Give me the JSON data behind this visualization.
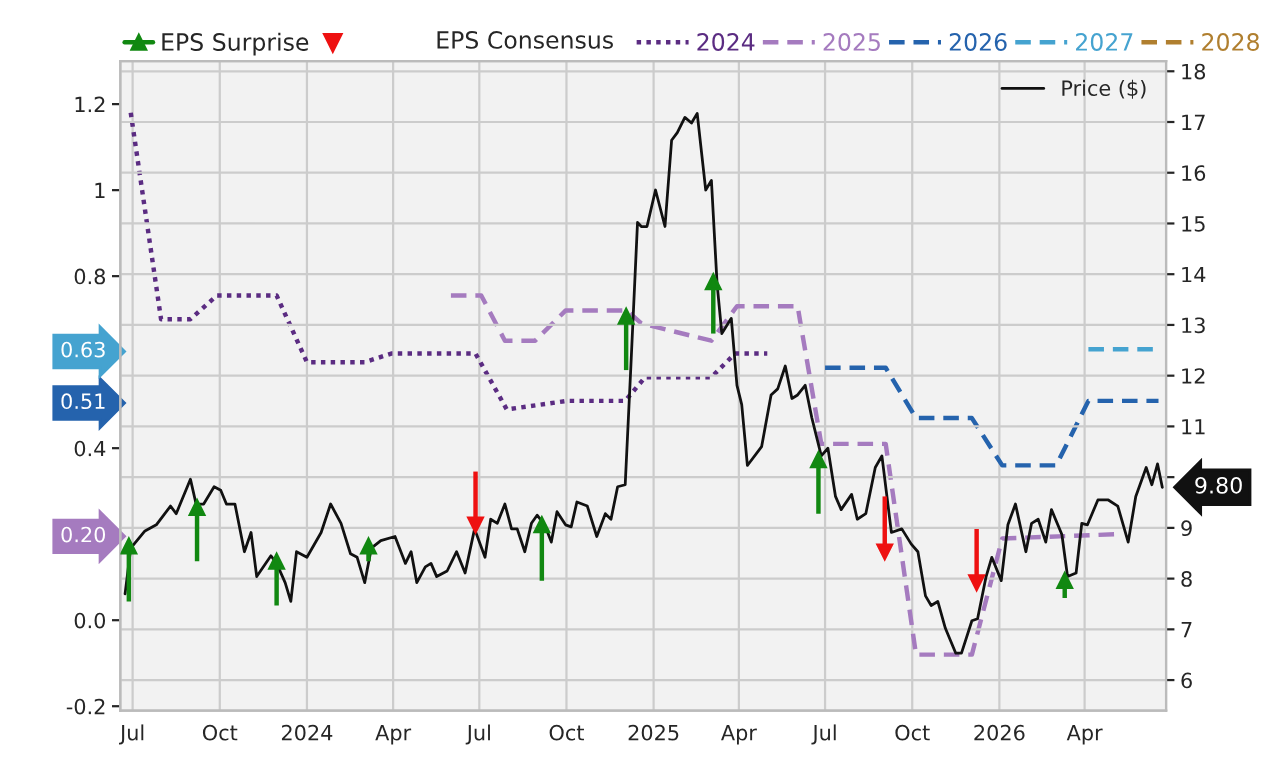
{
  "chart_data": {
    "type": "line",
    "legend_title": "EPS Consensus",
    "xlim": [
      "2023-06-18",
      "2026-06-26"
    ],
    "xticks": [
      {
        "value": "2023-07-01",
        "label": "Jul"
      },
      {
        "value": "2023-10-01",
        "label": "Oct"
      },
      {
        "value": "2024-01-01",
        "label": "2024"
      },
      {
        "value": "2024-04-01",
        "label": "Apr"
      },
      {
        "value": "2024-07-01",
        "label": "Jul"
      },
      {
        "value": "2024-10-01",
        "label": "Oct"
      },
      {
        "value": "2025-01-01",
        "label": "2025"
      },
      {
        "value": "2025-04-01",
        "label": "Apr"
      },
      {
        "value": "2025-07-01",
        "label": "Jul"
      },
      {
        "value": "2025-10-01",
        "label": "Oct"
      },
      {
        "value": "2026-01-01",
        "label": "2026"
      },
      {
        "value": "2026-04-01",
        "label": "Apr"
      }
    ],
    "ylim": [
      -0.21,
      1.3
    ],
    "yticks": [
      -0.2,
      {
        "value": 0,
        "label": "0.0"
      },
      {
        "value": 0.2,
        "label": "0.20"
      },
      0.4,
      {
        "value": 0.51,
        "label": "0.51"
      },
      {
        "value": 0.63,
        "label": "0.63"
      },
      0.8,
      1,
      1.2
    ],
    "y2lim": [
      5.4,
      18.2
    ],
    "y2ticks": [
      6,
      7,
      8,
      9,
      {
        "value": 10,
        "label": null
      },
      11,
      12,
      13,
      14,
      15,
      16,
      17,
      18
    ],
    "grid": true,
    "legend": "top",
    "series": [
      {
        "name": "2024",
        "color": "#5b2c82",
        "line_style": "dotted",
        "x": [
          "2023-06-29",
          "2023-07-31",
          "2023-08-31",
          "2023-09-28",
          "2023-11-30",
          "2024-01-01",
          "2024-03-02",
          "2024-03-30",
          "2024-06-27",
          "2024-07-30",
          "2024-10-02",
          "2024-12-02",
          "2024-12-23",
          "2025-03-03",
          "2025-03-28",
          "2025-05-01"
        ],
        "values": [
          1.18,
          0.7,
          0.7,
          0.755,
          0.755,
          0.6,
          0.6,
          0.62,
          0.62,
          0.49,
          0.51,
          0.51,
          0.565,
          0.565,
          0.62,
          0.62
        ]
      },
      {
        "name": "2025",
        "color": "#a57bbf",
        "line_style": "dashed",
        "x": [
          "2024-06-01",
          "2024-07-03",
          "2024-07-28",
          "2024-08-29",
          "2024-09-30",
          "2024-12-04",
          "2024-12-19",
          "2025-03-03",
          "2025-03-30",
          "2025-06-02",
          "2025-06-27",
          "2025-09-03",
          "2025-10-05",
          "2025-12-03",
          "2026-01-04",
          "2026-05-04"
        ],
        "values": [
          0.755,
          0.755,
          0.65,
          0.65,
          0.72,
          0.72,
          0.69,
          0.65,
          0.73,
          0.73,
          0.41,
          0.41,
          -0.08,
          -0.08,
          0.19,
          0.2
        ]
      },
      {
        "name": "2026",
        "color": "#2563ad",
        "line_style": "dashed",
        "x": [
          "2025-07-01",
          "2025-09-03",
          "2025-10-05",
          "2025-12-03",
          "2026-01-04",
          "2026-03-02",
          "2026-04-05",
          "2026-06-18"
        ],
        "values": [
          0.587,
          0.587,
          0.47,
          0.47,
          0.36,
          0.36,
          0.51,
          0.51
        ]
      },
      {
        "name": "2027",
        "color": "#45a3d0",
        "line_style": "dashed",
        "x": [
          "2026-04-05",
          "2026-06-18"
        ],
        "values": [
          0.63,
          0.63
        ]
      },
      {
        "name": "2028",
        "color": "#b07f2f",
        "line_style": "dashed"
      },
      {
        "name": "Price ($)",
        "color": "#111111",
        "line_style": "solid",
        "axis": "y2",
        "x": [
          "2023-06-23",
          "2023-06-29",
          "2023-07-14",
          "2023-07-26",
          "2023-08-10",
          "2023-08-16",
          "2023-08-31",
          "2023-09-06",
          "2023-09-14",
          "2023-09-25",
          "2023-10-02",
          "2023-10-08",
          "2023-10-17",
          "2023-10-27",
          "2023-11-03",
          "2023-11-09",
          "2023-11-24",
          "2023-11-30",
          "2023-12-09",
          "2023-12-15",
          "2023-12-21",
          "2024-01-01",
          "2024-01-16",
          "2024-01-26",
          "2024-02-06",
          "2024-02-16",
          "2024-02-23",
          "2024-03-02",
          "2024-03-09",
          "2024-03-19",
          "2024-04-03",
          "2024-04-14",
          "2024-04-20",
          "2024-04-26",
          "2024-05-05",
          "2024-05-11",
          "2024-05-17",
          "2024-05-28",
          "2024-06-07",
          "2024-06-16",
          "2024-06-26",
          "2024-07-07",
          "2024-07-13",
          "2024-07-20",
          "2024-07-28",
          "2024-08-04",
          "2024-08-10",
          "2024-08-18",
          "2024-08-25",
          "2024-08-31",
          "2024-09-08",
          "2024-09-15",
          "2024-09-21",
          "2024-09-30",
          "2024-10-06",
          "2024-10-12",
          "2024-10-23",
          "2024-11-02",
          "2024-11-11",
          "2024-11-17",
          "2024-11-24",
          "2024-12-02",
          "2024-12-08",
          "2024-12-15",
          "2024-12-19",
          "2024-12-25",
          "2025-01-03",
          "2025-01-13",
          "2025-01-20",
          "2025-01-26",
          "2025-02-03",
          "2025-02-10",
          "2025-02-16",
          "2025-02-25",
          "2025-03-03",
          "2025-03-09",
          "2025-03-14",
          "2025-03-24",
          "2025-03-30",
          "2025-04-04",
          "2025-04-10",
          "2025-04-25",
          "2025-05-05",
          "2025-05-12",
          "2025-05-20",
          "2025-05-27",
          "2025-06-02",
          "2025-06-10",
          "2025-06-17",
          "2025-06-27",
          "2025-07-04",
          "2025-07-12",
          "2025-07-18",
          "2025-07-29",
          "2025-08-04",
          "2025-08-13",
          "2025-08-23",
          "2025-08-30",
          "2025-09-09",
          "2025-09-20",
          "2025-09-30",
          "2025-10-07",
          "2025-10-15",
          "2025-10-21",
          "2025-10-28",
          "2025-11-05",
          "2025-11-16",
          "2025-11-22",
          "2025-12-03",
          "2025-12-09",
          "2025-12-18",
          "2025-12-24",
          "2026-01-03",
          "2026-01-10",
          "2026-01-18",
          "2026-01-29",
          "2026-02-04",
          "2026-02-11",
          "2026-02-19",
          "2026-02-25",
          "2026-03-08",
          "2026-03-14",
          "2026-03-23",
          "2026-03-29",
          "2026-04-04",
          "2026-04-15",
          "2026-04-26",
          "2026-05-06",
          "2026-05-17",
          "2026-05-25",
          "2026-06-05",
          "2026-06-11",
          "2026-06-17",
          "2026-06-22"
        ],
        "values": [
          7.7,
          8.6,
          8.94,
          9.06,
          9.43,
          9.28,
          9.96,
          9.47,
          9.47,
          9.81,
          9.74,
          9.47,
          9.47,
          8.53,
          8.91,
          8.04,
          8.45,
          8.3,
          7.92,
          7.55,
          8.53,
          8.42,
          8.91,
          9.47,
          9.09,
          8.49,
          8.42,
          7.92,
          8.6,
          8.75,
          8.83,
          8.3,
          8.53,
          7.92,
          8.23,
          8.3,
          8.04,
          8.15,
          8.53,
          8.11,
          8.98,
          8.42,
          9.17,
          9.09,
          9.47,
          8.98,
          8.98,
          8.53,
          9.09,
          9.25,
          9.06,
          8.72,
          9.32,
          9.06,
          9.02,
          9.51,
          9.43,
          8.83,
          9.28,
          9.17,
          9.81,
          9.85,
          12.19,
          15.02,
          14.94,
          14.94,
          15.66,
          14.94,
          16.64,
          16.79,
          17.09,
          16.98,
          17.17,
          15.66,
          15.85,
          13.81,
          12.83,
          13.13,
          11.81,
          11.43,
          10.23,
          10.6,
          11.62,
          11.74,
          12.19,
          11.55,
          11.62,
          11.81,
          11.17,
          10.42,
          10.57,
          9.62,
          9.36,
          9.66,
          9.17,
          9.28,
          10.19,
          10.42,
          8.91,
          8.98,
          8.68,
          8.53,
          7.66,
          7.47,
          7.55,
          7.02,
          6.53,
          6.53,
          7.17,
          7.21,
          8.04,
          8.42,
          7.96,
          9.06,
          9.47,
          8.53,
          9.09,
          9.17,
          8.72,
          9.36,
          8.87,
          8.04,
          8.11,
          9.09,
          9.06,
          9.55,
          9.55,
          9.43,
          8.72,
          9.62,
          10.19,
          9.85,
          10.26,
          9.8
        ],
        "value_labels": [
          null,
          null,
          null,
          null,
          null,
          null,
          null,
          null,
          null,
          null,
          null,
          null,
          null,
          null,
          null,
          null,
          null,
          null,
          null,
          null,
          null,
          null,
          null,
          null,
          null,
          null,
          null,
          null,
          null,
          null,
          null,
          null,
          null,
          null,
          null,
          null,
          null,
          null,
          null,
          null,
          null,
          null,
          null,
          null,
          null,
          null,
          null,
          null,
          null,
          null,
          null,
          null,
          null,
          null,
          null,
          null,
          null,
          null,
          null,
          null,
          null,
          null,
          null,
          null,
          null,
          null,
          null,
          null,
          null,
          null,
          null,
          null,
          null,
          null,
          null,
          null,
          null,
          null,
          null,
          null,
          null,
          null,
          null,
          null,
          null,
          null,
          null,
          null,
          null,
          null,
          null,
          null,
          null,
          null,
          null,
          null,
          null,
          null,
          null,
          null,
          null,
          null,
          null,
          null,
          null,
          null,
          null,
          null,
          null,
          null,
          null,
          null,
          null,
          null,
          null,
          null,
          null,
          null,
          null,
          null,
          null,
          null,
          null,
          null,
          null,
          null,
          null,
          null,
          null,
          null,
          null,
          null,
          null,
          "9.80"
        ]
      },
      {
        "name": "EPS Surprise",
        "type": "scatter",
        "color": "#118811",
        "axis": "y2",
        "x": [
          "2023-06-27",
          "2023-09-07",
          "2023-11-30",
          "2024-03-06",
          "2024-09-05",
          "2024-12-03",
          "2025-03-05",
          "2025-06-24",
          "2026-03-11"
        ],
        "marker": "triangle",
        "values": [
          8.64,
          9.4,
          8.34,
          8.64,
          9.06,
          13.17,
          13.85,
          10.34,
          7.96
        ],
        "errors": [
          [
            7.55,
            8.64
          ],
          [
            8.34,
            9.4
          ],
          [
            7.47,
            8.34
          ],
          [
            8.34,
            8.64
          ],
          [
            7.96,
            9.06
          ],
          [
            12.11,
            13.17
          ],
          [
            12.83,
            13.85
          ],
          [
            9.28,
            10.34
          ],
          [
            7.62,
            7.96
          ]
        ]
      },
      {
        "type": "scatter",
        "color": "#ee1111",
        "axis": "y2",
        "x": [
          "2024-06-27",
          "2025-09-02",
          "2025-12-08"
        ],
        "marker": "triangle",
        "values": [
          9.06,
          8.53,
          7.92
        ],
        "errors": [
          [
            9.06,
            10.11
          ],
          [
            8.53,
            9.62
          ],
          [
            7.92,
            8.98
          ]
        ]
      }
    ]
  }
}
